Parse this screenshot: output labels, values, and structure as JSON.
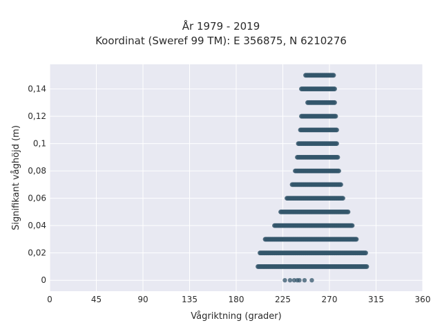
{
  "chart_data": {
    "type": "scatter",
    "title": "År 1979 - 2019",
    "subtitle": "Koordinat (Sweref 99 TM): E 356875, N 6210276",
    "xlabel": "Vågriktning (grader)",
    "ylabel": "Signifikant våghöjd (m)",
    "xlim": [
      0,
      360
    ],
    "ylim": [
      -0.008,
      0.158
    ],
    "x_ticks": [
      0,
      45,
      90,
      135,
      180,
      225,
      270,
      315,
      360
    ],
    "x_tick_labels": [
      "0",
      "45",
      "90",
      "135",
      "180",
      "225",
      "270",
      "315",
      "360"
    ],
    "y_ticks": [
      0,
      0.02,
      0.04,
      0.06,
      0.08,
      0.1,
      0.12,
      0.14
    ],
    "y_tick_labels": [
      "0",
      "0,02",
      "0,04",
      "0,06",
      "0,08",
      "0,1",
      "0,12",
      "0,14"
    ],
    "grid": true,
    "marker_color": "#34566b",
    "background_color": "#e8e9f2",
    "bands": [
      {
        "y": 0.0,
        "x_points": [
          227,
          232,
          236,
          239,
          241,
          246,
          253
        ]
      },
      {
        "y": 0.01,
        "x_range": [
          201,
          306
        ]
      },
      {
        "y": 0.02,
        "x_range": [
          203,
          305
        ]
      },
      {
        "y": 0.03,
        "x_range": [
          208,
          296
        ]
      },
      {
        "y": 0.04,
        "x_range": [
          217,
          292
        ]
      },
      {
        "y": 0.05,
        "x_range": [
          223,
          288
        ]
      },
      {
        "y": 0.06,
        "x_range": [
          229,
          283
        ]
      },
      {
        "y": 0.07,
        "x_range": [
          234,
          281
        ]
      },
      {
        "y": 0.08,
        "x_range": [
          237,
          279
        ]
      },
      {
        "y": 0.09,
        "x_range": [
          239,
          278
        ]
      },
      {
        "y": 0.1,
        "x_range": [
          240,
          277
        ]
      },
      {
        "y": 0.11,
        "x_range": [
          242,
          277
        ]
      },
      {
        "y": 0.12,
        "x_range": [
          243,
          276
        ]
      },
      {
        "y": 0.13,
        "x_range": [
          249,
          275
        ]
      },
      {
        "y": 0.14,
        "x_range": [
          243,
          275
        ]
      },
      {
        "y": 0.15,
        "x_range": [
          247,
          274
        ]
      }
    ]
  }
}
